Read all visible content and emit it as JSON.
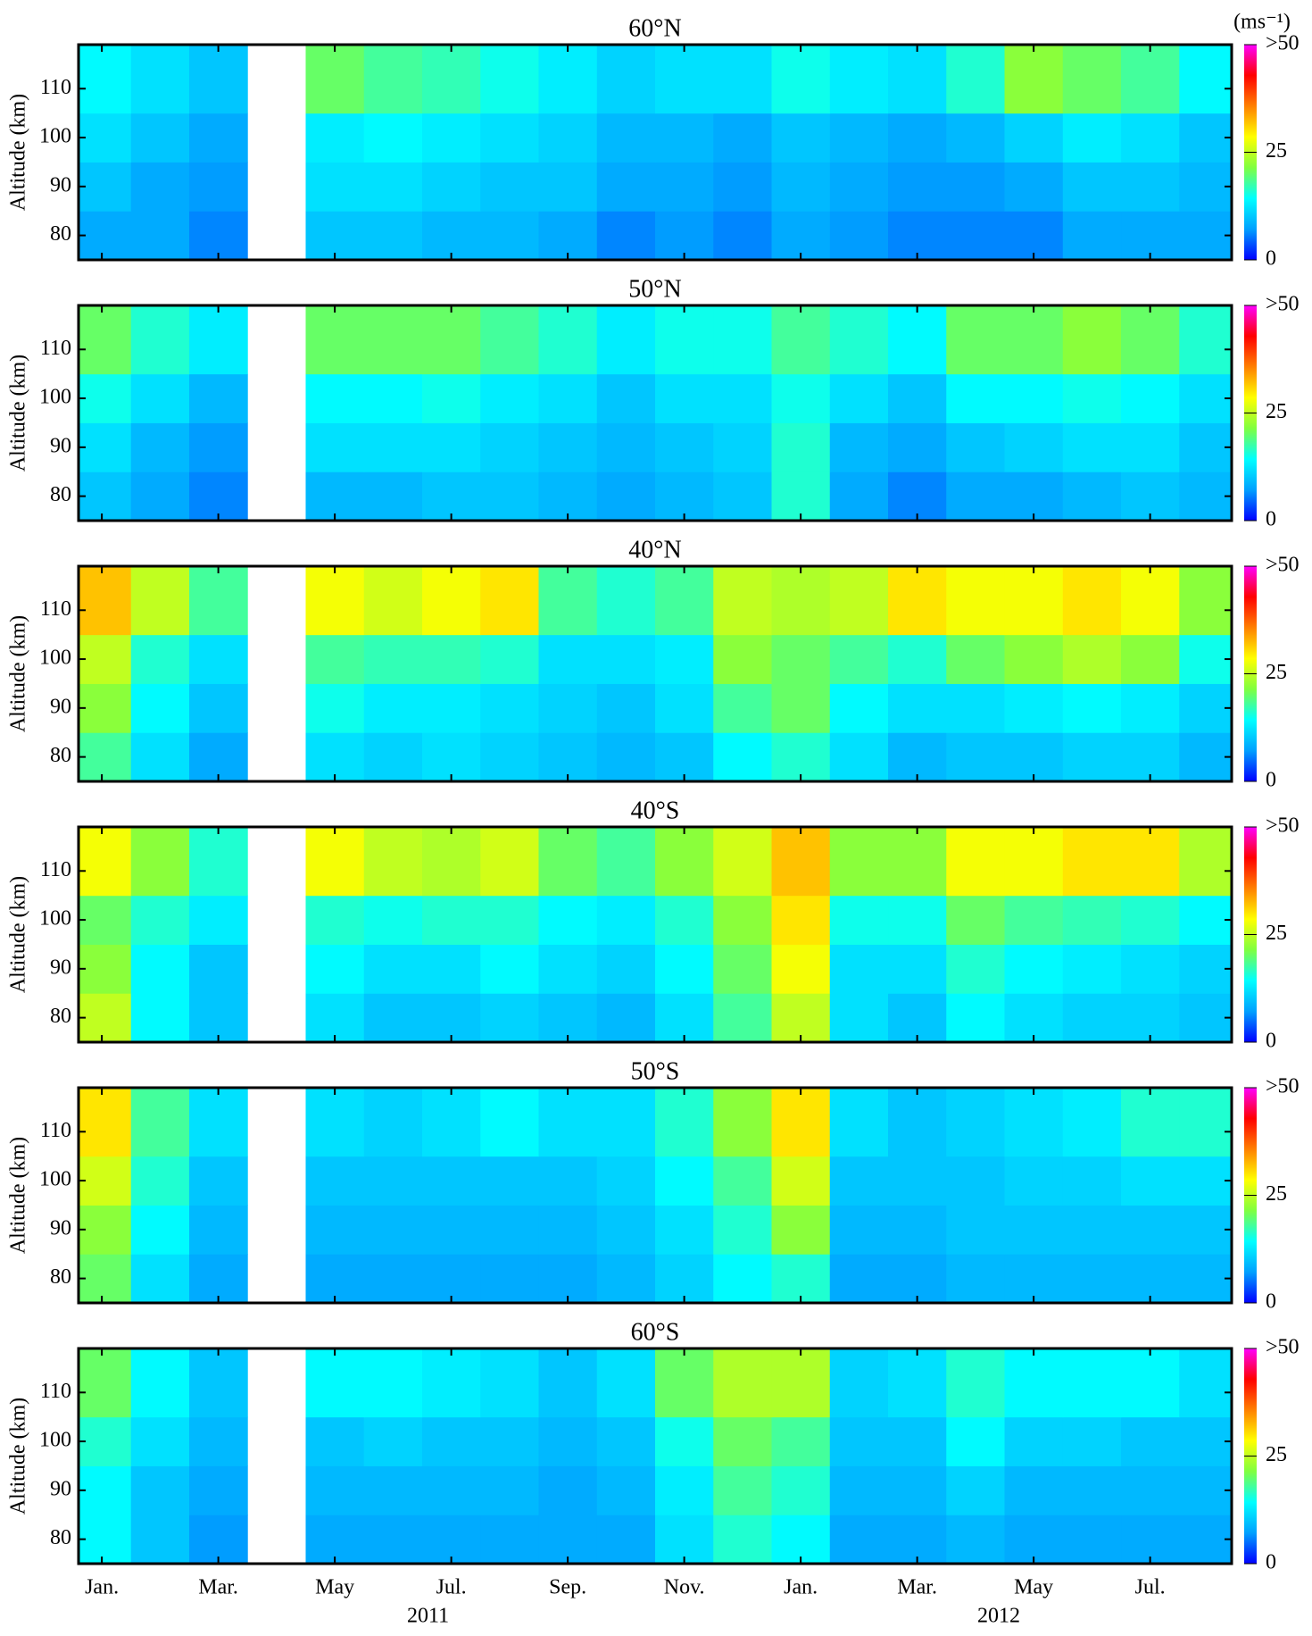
{
  "x_axis": {
    "xlim": [
      -0.4,
      19.4
    ],
    "xticks": [
      {
        "value": 0,
        "label": "Jan."
      },
      {
        "value": 2,
        "label": "Mar."
      },
      {
        "value": 4,
        "label": "May"
      },
      {
        "value": 6,
        "label": "Jul."
      },
      {
        "value": 8,
        "label": "Sep."
      },
      {
        "value": 10,
        "label": "Nov."
      },
      {
        "value": 12,
        "label": "Jan."
      },
      {
        "value": 14,
        "label": "Mar."
      },
      {
        "value": 16,
        "label": "May"
      },
      {
        "value": 18,
        "label": "Jul."
      }
    ],
    "year_labels": [
      {
        "value": 5.6,
        "label": "2011"
      },
      {
        "value": 15.4,
        "label": "2012"
      }
    ]
  },
  "colorbar": {
    "title": "(ms⁻¹)",
    "lim": [
      0,
      50
    ],
    "ticks": [
      0,
      25,
      {
        "value": 50,
        "label": ">50"
      }
    ],
    "colorscale": [
      "#0000ff",
      "#00a0ff",
      "#00ffff",
      "#80ff40",
      "#ffff00",
      "#ff8000",
      "#ff0000",
      "#ff00ff"
    ]
  },
  "chart_data": [
    {
      "type": "heatmap",
      "title": "60°N",
      "ylabel": "Altitude (km)",
      "ylim": [
        75,
        119
      ],
      "yticks": [
        80,
        90,
        100,
        110
      ],
      "x": [
        0,
        1,
        2,
        3,
        4,
        5,
        6,
        7,
        8,
        9,
        10,
        11,
        12,
        13,
        14,
        15,
        16,
        17,
        18,
        19
      ],
      "y": [
        80,
        90,
        100,
        110
      ],
      "z": [
        [
          8,
          8,
          6,
          null,
          10,
          10,
          9,
          9,
          8,
          6,
          7,
          6,
          8,
          7,
          6,
          6,
          6,
          8,
          8,
          8
        ],
        [
          10,
          8,
          7,
          null,
          12,
          12,
          11,
          10,
          10,
          8,
          8,
          7,
          9,
          8,
          7,
          7,
          8,
          10,
          10,
          9
        ],
        [
          12,
          10,
          8,
          null,
          13,
          14,
          13,
          12,
          11,
          9,
          9,
          8,
          10,
          9,
          8,
          9,
          11,
          13,
          12,
          10
        ],
        [
          14,
          12,
          10,
          null,
          20,
          18,
          17,
          15,
          13,
          11,
          12,
          12,
          15,
          13,
          12,
          16,
          22,
          20,
          18,
          14
        ]
      ]
    },
    {
      "type": "heatmap",
      "title": "50°N",
      "ylabel": "Altitude (km)",
      "ylim": [
        75,
        119
      ],
      "yticks": [
        80,
        90,
        100,
        110
      ],
      "x": [
        0,
        1,
        2,
        3,
        4,
        5,
        6,
        7,
        8,
        9,
        10,
        11,
        12,
        13,
        14,
        15,
        16,
        17,
        18,
        19
      ],
      "y": [
        80,
        90,
        100,
        110
      ],
      "z": [
        [
          10,
          8,
          6,
          null,
          9,
          9,
          10,
          10,
          9,
          8,
          9,
          10,
          16,
          8,
          6,
          8,
          8,
          9,
          10,
          9
        ],
        [
          12,
          9,
          7,
          null,
          12,
          12,
          12,
          11,
          10,
          9,
          10,
          11,
          16,
          9,
          8,
          10,
          11,
          12,
          12,
          10
        ],
        [
          15,
          12,
          9,
          null,
          14,
          14,
          15,
          13,
          12,
          10,
          12,
          12,
          15,
          12,
          10,
          14,
          14,
          15,
          14,
          12
        ],
        [
          20,
          16,
          13,
          null,
          20,
          20,
          20,
          18,
          16,
          13,
          15,
          15,
          18,
          16,
          14,
          20,
          20,
          22,
          20,
          16
        ]
      ]
    },
    {
      "type": "heatmap",
      "title": "40°N",
      "ylabel": "Altitude (km)",
      "ylim": [
        75,
        119
      ],
      "yticks": [
        80,
        90,
        100,
        110
      ],
      "x": [
        0,
        1,
        2,
        3,
        4,
        5,
        6,
        7,
        8,
        9,
        10,
        11,
        12,
        13,
        14,
        15,
        16,
        17,
        18,
        19
      ],
      "y": [
        80,
        90,
        100,
        110
      ],
      "z": [
        [
          18,
          12,
          8,
          null,
          12,
          11,
          12,
          11,
          10,
          9,
          10,
          14,
          16,
          12,
          9,
          10,
          10,
          11,
          11,
          9
        ],
        [
          22,
          14,
          10,
          null,
          15,
          13,
          13,
          12,
          11,
          10,
          12,
          18,
          20,
          14,
          12,
          12,
          13,
          14,
          13,
          11
        ],
        [
          25,
          16,
          12,
          null,
          18,
          17,
          17,
          16,
          12,
          12,
          13,
          22,
          20,
          18,
          16,
          20,
          22,
          24,
          22,
          15
        ],
        [
          32,
          25,
          18,
          null,
          28,
          26,
          28,
          30,
          18,
          16,
          18,
          25,
          24,
          25,
          30,
          28,
          28,
          30,
          28,
          22
        ]
      ]
    },
    {
      "type": "heatmap",
      "title": "40°S",
      "ylabel": "Altitude (km)",
      "ylim": [
        75,
        119
      ],
      "yticks": [
        80,
        90,
        100,
        110
      ],
      "x": [
        0,
        1,
        2,
        3,
        4,
        5,
        6,
        7,
        8,
        9,
        10,
        11,
        12,
        13,
        14,
        15,
        16,
        17,
        18,
        19
      ],
      "y": [
        80,
        90,
        100,
        110
      ],
      "z": [
        [
          25,
          14,
          10,
          null,
          12,
          10,
          10,
          11,
          10,
          9,
          12,
          18,
          25,
          12,
          10,
          14,
          12,
          11,
          11,
          10
        ],
        [
          22,
          14,
          10,
          null,
          14,
          12,
          12,
          14,
          12,
          11,
          14,
          20,
          28,
          12,
          12,
          16,
          14,
          13,
          12,
          11
        ],
        [
          20,
          16,
          13,
          null,
          16,
          15,
          16,
          16,
          14,
          13,
          16,
          22,
          30,
          15,
          15,
          20,
          18,
          17,
          16,
          14
        ],
        [
          28,
          22,
          16,
          null,
          28,
          25,
          24,
          26,
          20,
          18,
          22,
          26,
          32,
          22,
          22,
          28,
          28,
          30,
          30,
          24
        ]
      ]
    },
    {
      "type": "heatmap",
      "title": "50°S",
      "ylabel": "Altitude (km)",
      "ylim": [
        75,
        119
      ],
      "yticks": [
        80,
        90,
        100,
        110
      ],
      "x": [
        0,
        1,
        2,
        3,
        4,
        5,
        6,
        7,
        8,
        9,
        10,
        11,
        12,
        13,
        14,
        15,
        16,
        17,
        18,
        19
      ],
      "y": [
        80,
        90,
        100,
        110
      ],
      "z": [
        [
          20,
          12,
          8,
          null,
          8,
          8,
          8,
          8,
          8,
          9,
          11,
          14,
          16,
          8,
          8,
          9,
          9,
          9,
          9,
          9
        ],
        [
          22,
          14,
          9,
          null,
          9,
          9,
          9,
          9,
          9,
          10,
          12,
          16,
          22,
          9,
          9,
          10,
          10,
          10,
          10,
          10
        ],
        [
          26,
          16,
          10,
          null,
          10,
          10,
          10,
          10,
          10,
          11,
          14,
          18,
          26,
          10,
          10,
          10,
          11,
          11,
          12,
          12
        ],
        [
          30,
          18,
          12,
          null,
          12,
          11,
          12,
          14,
          12,
          12,
          16,
          22,
          30,
          12,
          10,
          11,
          12,
          13,
          16,
          16
        ]
      ]
    },
    {
      "type": "heatmap",
      "title": "60°S",
      "ylabel": "Altitude (km)",
      "ylim": [
        75,
        119
      ],
      "yticks": [
        80,
        90,
        100,
        110
      ],
      "x": [
        0,
        1,
        2,
        3,
        4,
        5,
        6,
        7,
        8,
        9,
        10,
        11,
        12,
        13,
        14,
        15,
        16,
        17,
        18,
        19
      ],
      "y": [
        80,
        90,
        100,
        110
      ],
      "z": [
        [
          14,
          10,
          7,
          null,
          8,
          8,
          8,
          8,
          8,
          8,
          12,
          16,
          14,
          8,
          8,
          9,
          8,
          8,
          8,
          8
        ],
        [
          14,
          10,
          8,
          null,
          9,
          9,
          9,
          9,
          8,
          9,
          13,
          18,
          16,
          9,
          9,
          11,
          9,
          9,
          9,
          9
        ],
        [
          16,
          12,
          9,
          null,
          10,
          11,
          10,
          10,
          9,
          10,
          15,
          20,
          18,
          10,
          10,
          14,
          11,
          11,
          10,
          10
        ],
        [
          20,
          14,
          10,
          null,
          14,
          14,
          13,
          12,
          10,
          12,
          20,
          24,
          24,
          11,
          12,
          16,
          14,
          14,
          14,
          12
        ]
      ]
    }
  ]
}
